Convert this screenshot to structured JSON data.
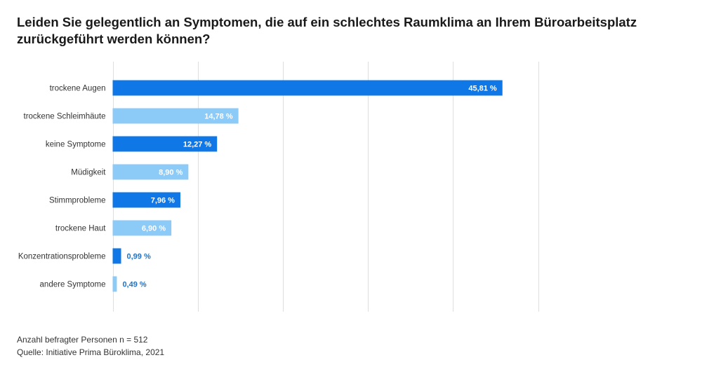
{
  "chart_data": {
    "type": "bar",
    "orientation": "horizontal",
    "title": "Leiden Sie gelegentlich an Symptomen, die auf ein schlechtes Raumklima an Ihrem Büroarbeitsplatz zurückgeführt werden können?",
    "categories": [
      "trockene Augen",
      "trockene Schleimhäute",
      "keine Symptome",
      "Müdigkeit",
      "Stimmprobleme",
      "trockene Haut",
      "Konzentrationsprobleme",
      "andere Symptome"
    ],
    "values": [
      45.81,
      14.78,
      12.27,
      8.9,
      7.96,
      6.9,
      0.99,
      0.49
    ],
    "value_labels": [
      "45,81 %",
      "14,78 %",
      "12,27 %",
      "8,90 %",
      "7,96 %",
      "6,90 %",
      "0,99 %",
      "0,49 %"
    ],
    "xlim": [
      0,
      50
    ],
    "grid_step": 10,
    "grid": true,
    "bar_colors": [
      "#0f78e6",
      "#8ccaf7",
      "#0f78e6",
      "#8ccaf7",
      "#0f78e6",
      "#8ccaf7",
      "#0f78e6",
      "#8ccaf7"
    ],
    "label_color_inside": "#ffffff",
    "label_color_outside": "#1f72c4",
    "grid_color": "#dedede"
  },
  "footer": {
    "sample": "Anzahl befragter Personen n = 512",
    "source": "Quelle: Initiative Prima Büroklima, 2021"
  }
}
